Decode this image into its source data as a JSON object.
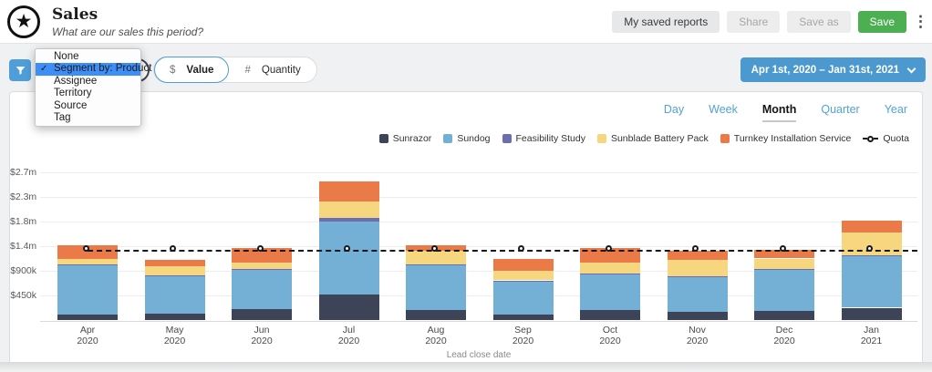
{
  "header": {
    "title": "Sales",
    "subtitle": "What are our sales this period?",
    "buttons": [
      {
        "label": "My saved reports",
        "style": "neutral"
      },
      {
        "label": "Share",
        "style": "muted"
      },
      {
        "label": "Save as",
        "style": "muted"
      },
      {
        "label": "Save",
        "style": "primary"
      }
    ]
  },
  "toolbar": {
    "segment_dropdown": {
      "open": true,
      "items": [
        {
          "label": "None",
          "selected": false
        },
        {
          "label": "Segment by: Product",
          "selected": true
        },
        {
          "label": "Assignee",
          "selected": false
        },
        {
          "label": "Territory",
          "selected": false
        },
        {
          "label": "Source",
          "selected": false
        },
        {
          "label": "Tag",
          "selected": false
        }
      ]
    },
    "value_toggle": {
      "options": [
        {
          "prefix": "$",
          "label": "Value",
          "selected": true
        },
        {
          "prefix": "#",
          "label": "Quantity",
          "selected": false
        }
      ]
    },
    "date_range": "Apr 1st, 2020 – Jan 31st, 2021"
  },
  "granularity_tabs": [
    {
      "label": "Day",
      "active": false
    },
    {
      "label": "Week",
      "active": false
    },
    {
      "label": "Month",
      "active": true
    },
    {
      "label": "Quarter",
      "active": false
    },
    {
      "label": "Year",
      "active": false
    }
  ],
  "chart_data": {
    "type": "bar",
    "stacked": true,
    "xlabel": "Lead close date",
    "legend_position": "top-right",
    "grid": true,
    "ylim": [
      0,
      2835000
    ],
    "yticks": [
      {
        "label": "$450k",
        "value": 450000
      },
      {
        "label": "$900k",
        "value": 900000
      },
      {
        "label": "$1.4m",
        "value": 1350000
      },
      {
        "label": "$1.8m",
        "value": 1800000
      },
      {
        "label": "$2.3m",
        "value": 2250000
      },
      {
        "label": "$2.7m",
        "value": 2700000
      }
    ],
    "categories": [
      {
        "month": "Apr",
        "year": "2020"
      },
      {
        "month": "May",
        "year": "2020"
      },
      {
        "month": "Jun",
        "year": "2020"
      },
      {
        "month": "Jul",
        "year": "2020"
      },
      {
        "month": "Aug",
        "year": "2020"
      },
      {
        "month": "Sep",
        "year": "2020"
      },
      {
        "month": "Oct",
        "year": "2020"
      },
      {
        "month": "Nov",
        "year": "2020"
      },
      {
        "month": "Dec",
        "year": "2020"
      },
      {
        "month": "Jan",
        "year": "2021"
      }
    ],
    "series": [
      {
        "name": "Sunrazor",
        "color": "#3e4458",
        "values": [
          100000,
          120000,
          195000,
          460000,
          180000,
          105000,
          185000,
          150000,
          170000,
          225000
        ]
      },
      {
        "name": "Sundog",
        "color": "#74afd6",
        "values": [
          900000,
          685000,
          715000,
          1345000,
          820000,
          610000,
          645000,
          635000,
          755000,
          940000
        ]
      },
      {
        "name": "Feasibility Study",
        "color": "#6b6fb2",
        "values": [
          20000,
          10000,
          25000,
          55000,
          15000,
          10000,
          20000,
          15000,
          10000,
          15000
        ]
      },
      {
        "name": "Sunblade Battery Pack",
        "color": "#f6d67f",
        "values": [
          105000,
          170000,
          110000,
          310000,
          245000,
          180000,
          205000,
          295000,
          190000,
          415000
        ]
      },
      {
        "name": "Turnkey Installation Service",
        "color": "#ea7a47",
        "values": [
          250000,
          115000,
          270000,
          365000,
          110000,
          210000,
          260000,
          170000,
          160000,
          215000
        ]
      }
    ],
    "quota": {
      "name": "Quota",
      "value": 1270000,
      "line_style": "dashed",
      "color": "#15181d"
    }
  }
}
